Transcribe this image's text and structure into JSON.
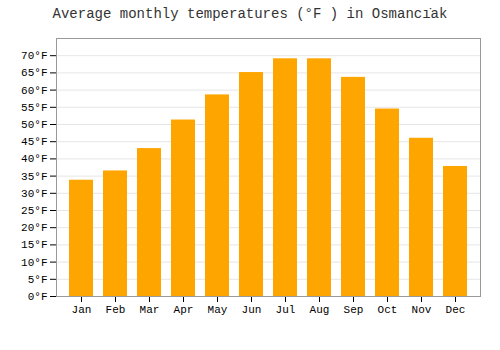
{
  "chart_data": {
    "type": "bar",
    "title": "Average monthly temperatures (°F ) in Osmancı̇ak",
    "categories": [
      "Jan",
      "Feb",
      "Mar",
      "Apr",
      "May",
      "Jun",
      "Jul",
      "Aug",
      "Sep",
      "Oct",
      "Nov",
      "Dec"
    ],
    "values": [
      33.8,
      36.5,
      43.0,
      51.3,
      58.6,
      65.1,
      69.1,
      69.1,
      63.7,
      54.5,
      46.0,
      37.8
    ],
    "color": "#FFA500",
    "ylim": [
      0,
      75
    ],
    "yticks": [
      {
        "value": 0,
        "label": "0°F"
      },
      {
        "value": 5,
        "label": "5°F"
      },
      {
        "value": 10,
        "label": "10°F"
      },
      {
        "value": 15,
        "label": "15°F"
      },
      {
        "value": 20,
        "label": "20°F"
      },
      {
        "value": 25,
        "label": "25°F"
      },
      {
        "value": 30,
        "label": "30°F"
      },
      {
        "value": 35,
        "label": "35°F"
      },
      {
        "value": 40,
        "label": "40°F"
      },
      {
        "value": 45,
        "label": "45°F"
      },
      {
        "value": 50,
        "label": "50°F"
      },
      {
        "value": 55,
        "label": "55°F"
      },
      {
        "value": 60,
        "label": "60°F"
      },
      {
        "value": 65,
        "label": "65°F"
      },
      {
        "value": 70,
        "label": "70°F"
      }
    ],
    "grid": true
  }
}
